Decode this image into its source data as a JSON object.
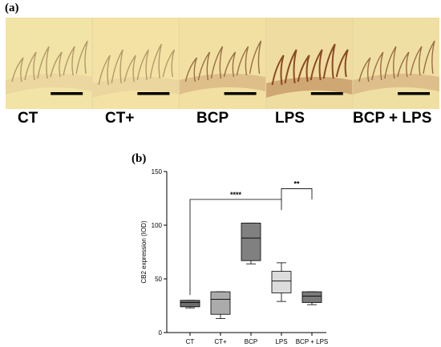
{
  "figure": {
    "panel_a_label": "(a)",
    "panel_b_label": "(b)"
  },
  "micrographs": [
    {
      "label": "CT",
      "stain": "light",
      "bg": "#f2e3a6"
    },
    {
      "label": "CT+",
      "stain": "light",
      "bg": "#f3e2a4"
    },
    {
      "label": "BCP",
      "stain": "medium",
      "bg": "#f1e0a2"
    },
    {
      "label": "LPS",
      "stain": "strong",
      "bg": "#efdca0"
    },
    {
      "label": "BCP + LPS",
      "stain": "medium",
      "bg": "#f0dfa3"
    }
  ],
  "chart_data": {
    "type": "box",
    "ylabel": "CB2 expression (IOD)",
    "xlabel": "",
    "ylim": [
      0,
      150
    ],
    "yticks": [
      0,
      50,
      100,
      150
    ],
    "grid": false,
    "categories": [
      "CT",
      "CT+",
      "BCP",
      "LPS",
      "BCP + LPS"
    ],
    "boxes": [
      {
        "category": "CT",
        "min": 23,
        "q1": 24,
        "median": 28,
        "q3": 30,
        "max": 30,
        "fill": "#6e6e6e"
      },
      {
        "category": "CT+",
        "min": 13,
        "q1": 17,
        "median": 31,
        "q3": 38,
        "max": 38,
        "fill": "#ababab"
      },
      {
        "category": "BCP",
        "min": 64,
        "q1": 67,
        "median": 88,
        "q3": 102,
        "max": 102,
        "fill": "#808080"
      },
      {
        "category": "LPS",
        "min": 29,
        "q1": 37,
        "median": 48,
        "q3": 57,
        "max": 65,
        "fill": "#dcdcdc"
      },
      {
        "category": "BCP + LPS",
        "min": 26,
        "q1": 28,
        "median": 34,
        "q3": 38,
        "max": 38,
        "fill": "#7a7a7a"
      }
    ],
    "significance": [
      {
        "from": "CT",
        "to": "LPS",
        "y": 124,
        "label": "****"
      },
      {
        "from": "LPS",
        "to": "BCP + LPS",
        "y": 134,
        "label": "**"
      }
    ]
  }
}
